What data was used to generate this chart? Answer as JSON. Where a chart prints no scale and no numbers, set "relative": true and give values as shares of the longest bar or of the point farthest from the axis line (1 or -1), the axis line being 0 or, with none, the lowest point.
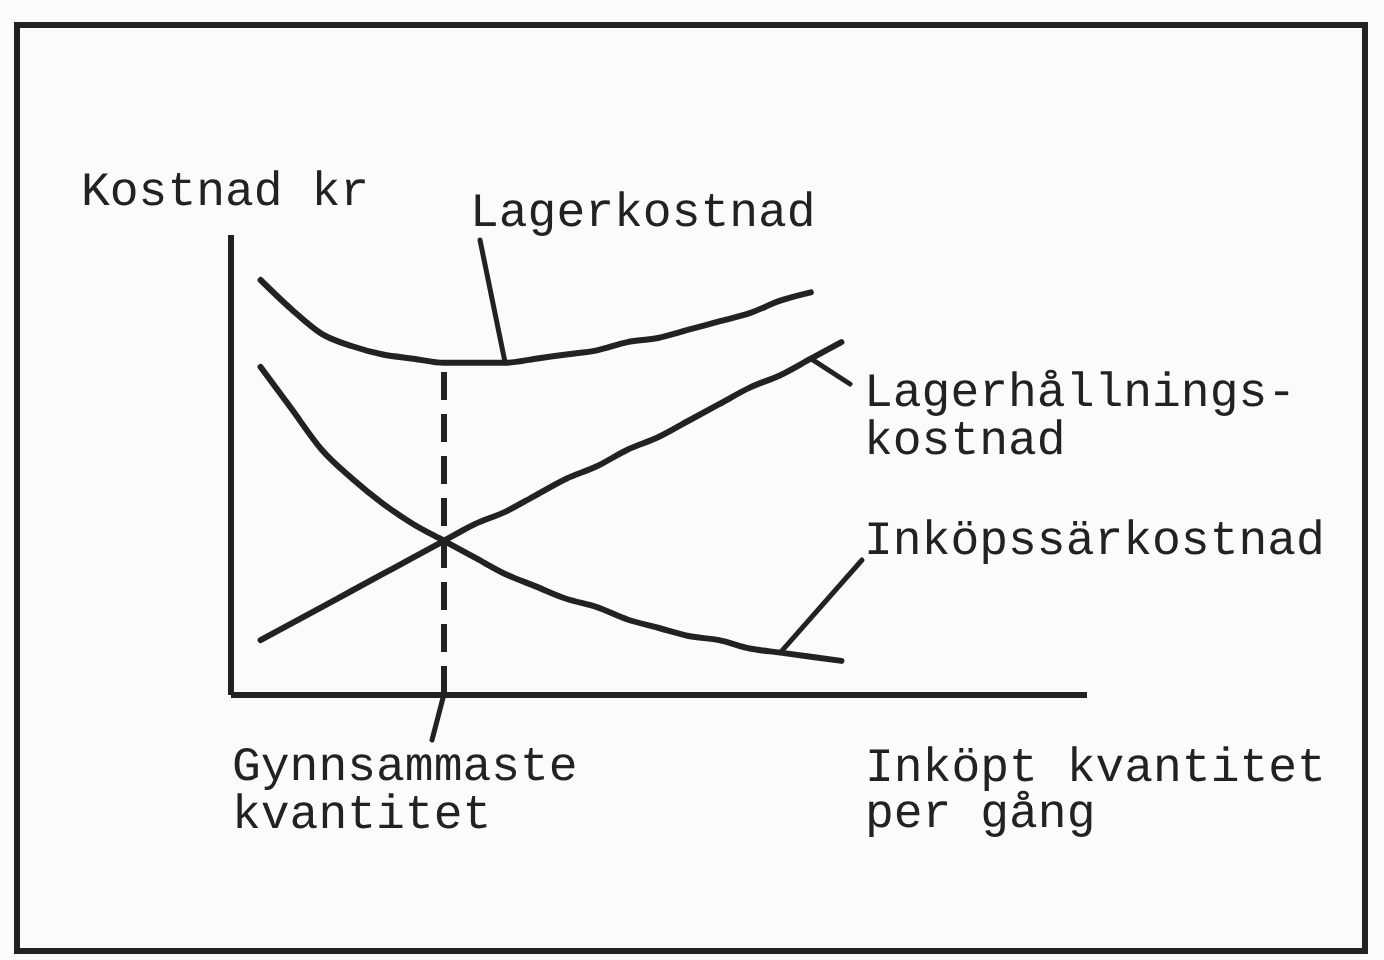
{
  "chart_data": {
    "type": "line",
    "relative": true,
    "ylabel": "Kostnad kr",
    "xlabel": "Inköpt kvantitet per gång",
    "categories": [
      null,
      null,
      null,
      null,
      null,
      null,
      null,
      null,
      null,
      null,
      null,
      null,
      null,
      null,
      null,
      null,
      null,
      null,
      null,
      null,
      null,
      null,
      null,
      null,
      null,
      null,
      null
    ],
    "series": [
      {
        "name": "Lagerkostnad",
        "color": "#222222",
        "values": [
          1.0,
          0.93,
          0.87,
          0.84,
          0.82,
          0.81,
          0.8,
          0.8,
          0.8,
          0.81,
          0.82,
          0.83,
          0.85,
          0.86,
          0.88,
          0.9,
          0.92,
          0.95,
          0.97,
          null,
          null,
          null,
          null,
          null,
          null,
          null,
          null
        ]
      },
      {
        "name": "Lagerhållnings-kostnad",
        "color": "#222222",
        "values": [
          0.13,
          0.17,
          0.21,
          0.25,
          0.29,
          0.33,
          0.37,
          0.41,
          0.44,
          0.48,
          0.52,
          0.55,
          0.59,
          0.62,
          0.66,
          0.7,
          0.74,
          0.77,
          0.81,
          0.85,
          null,
          null,
          null,
          null,
          null,
          null,
          null
        ]
      },
      {
        "name": "Inköpssärkostnad",
        "color": "#222222",
        "values": [
          0.79,
          0.69,
          0.59,
          0.52,
          0.46,
          0.41,
          0.37,
          0.33,
          0.29,
          0.26,
          0.23,
          0.21,
          0.18,
          0.16,
          0.14,
          0.13,
          0.11,
          0.1,
          0.09,
          0.08,
          null,
          null,
          null,
          null,
          null,
          null,
          null
        ]
      }
    ],
    "annotations": [
      "Gynnsammaste kvantitet"
    ]
  }
}
